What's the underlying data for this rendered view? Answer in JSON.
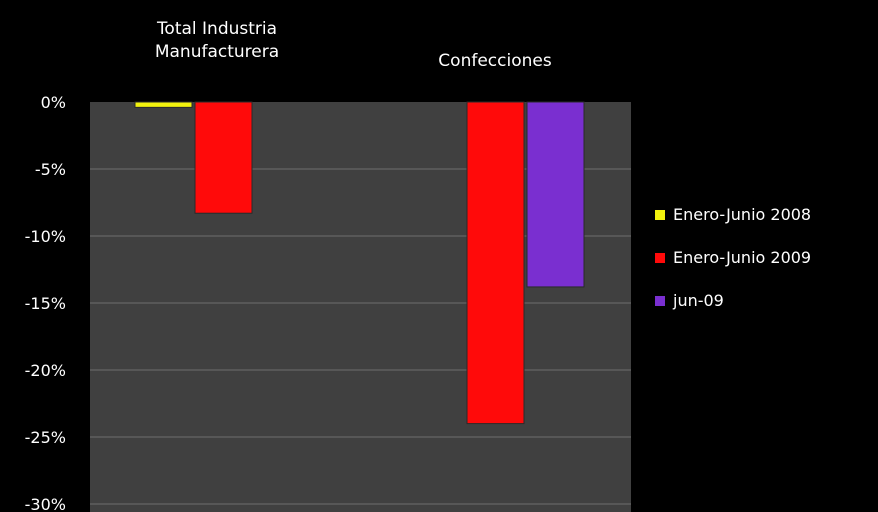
{
  "chart_data": {
    "type": "bar",
    "categories": [
      "Total Industria\nManufacturera",
      "Confecciones"
    ],
    "series": [
      {
        "name": "Enero-Junio 2008",
        "color": "#f2f20e",
        "values": [
          -0.4,
          null
        ]
      },
      {
        "name": "Enero-Junio 2009",
        "color": "#ff0a0a",
        "values": [
          -8.3,
          -24.0
        ]
      },
      {
        "name": "jun-09",
        "color": "#7a2fd0",
        "values": [
          null,
          -13.8
        ]
      }
    ],
    "yticks": [
      "0%",
      "-5%",
      "-10%",
      "-15%",
      "-20%",
      "-25%",
      "-30%"
    ],
    "ylim": [
      -30,
      0
    ],
    "grid": true,
    "legend_position": "right",
    "category_label_position": "top",
    "plot_background": "#404040",
    "page_background": "#000000"
  }
}
